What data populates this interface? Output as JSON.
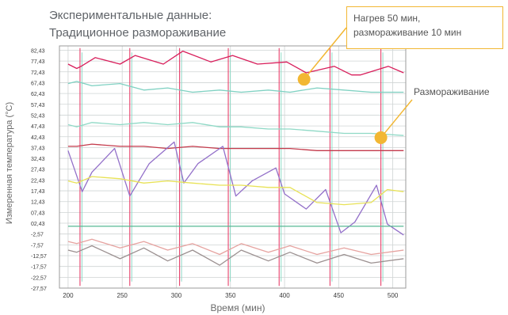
{
  "chart_data": {
    "type": "line",
    "title": "Экспериментальные данные:",
    "subtitle": "Традиционное размораживание",
    "xlabel": "Время (мин)",
    "ylabel": "Измеренная температура (°C)",
    "xlim": [
      192,
      512
    ],
    "ylim": [
      -27.57,
      84.43
    ],
    "x_ticks": [
      "200",
      "250",
      "300",
      "350",
      "400",
      "450",
      "500"
    ],
    "y_ticks": [
      "82,43",
      "77,43",
      "72,43",
      "67,43",
      "62,43",
      "57,43",
      "52,43",
      "47,43",
      "42,43",
      "37,43",
      "32,43",
      "27,43",
      "22,43",
      "17,43",
      "12,43",
      "07,43",
      "02,43",
      "-2,57",
      "-7,57",
      "-12,57",
      "-17,57",
      "-22,57",
      "-27,57"
    ],
    "grid": true,
    "defrost_times": [
      211,
      257,
      303,
      348,
      395,
      442,
      489
    ],
    "series": [
      {
        "color": "#d81e5b",
        "values": [
          [
            200,
            76
          ],
          [
            208,
            74
          ],
          [
            212,
            75
          ],
          [
            225,
            79
          ],
          [
            248,
            76
          ],
          [
            262,
            80
          ],
          [
            288,
            76
          ],
          [
            306,
            82
          ],
          [
            332,
            77
          ],
          [
            352,
            80
          ],
          [
            375,
            76
          ],
          [
            402,
            77
          ],
          [
            420,
            72
          ],
          [
            446,
            75
          ],
          [
            462,
            71
          ],
          [
            470,
            71
          ],
          [
            496,
            75
          ],
          [
            510,
            72
          ]
        ]
      },
      {
        "color": "#7fd1c2",
        "values": [
          [
            200,
            67
          ],
          [
            208,
            68
          ],
          [
            222,
            66
          ],
          [
            248,
            67
          ],
          [
            270,
            64
          ],
          [
            292,
            65
          ],
          [
            315,
            63
          ],
          [
            340,
            64
          ],
          [
            360,
            63
          ],
          [
            385,
            64
          ],
          [
            405,
            63
          ],
          [
            430,
            65
          ],
          [
            455,
            64
          ],
          [
            480,
            63
          ],
          [
            510,
            63
          ]
        ]
      },
      {
        "color": "#8fd9c6",
        "values": [
          [
            200,
            48
          ],
          [
            208,
            47
          ],
          [
            222,
            49
          ],
          [
            248,
            48
          ],
          [
            270,
            49
          ],
          [
            292,
            48
          ],
          [
            315,
            49
          ],
          [
            340,
            47
          ],
          [
            360,
            47
          ],
          [
            385,
            46
          ],
          [
            405,
            46
          ],
          [
            430,
            45
          ],
          [
            455,
            44
          ],
          [
            480,
            44
          ],
          [
            510,
            43
          ]
        ]
      },
      {
        "color": "#c43a4b",
        "values": [
          [
            200,
            38
          ],
          [
            208,
            38
          ],
          [
            222,
            39
          ],
          [
            248,
            38
          ],
          [
            270,
            38
          ],
          [
            292,
            37
          ],
          [
            315,
            38
          ],
          [
            340,
            37
          ],
          [
            360,
            37
          ],
          [
            385,
            37
          ],
          [
            405,
            37
          ],
          [
            430,
            36
          ],
          [
            455,
            36
          ],
          [
            480,
            36
          ],
          [
            510,
            36
          ]
        ]
      },
      {
        "color": "#9370c9",
        "values": [
          [
            200,
            36
          ],
          [
            213,
            17
          ],
          [
            222,
            26
          ],
          [
            243,
            37
          ],
          [
            257,
            15
          ],
          [
            275,
            30
          ],
          [
            298,
            40
          ],
          [
            307,
            21
          ],
          [
            320,
            30
          ],
          [
            343,
            38
          ],
          [
            355,
            15
          ],
          [
            370,
            22
          ],
          [
            392,
            28
          ],
          [
            400,
            16
          ],
          [
            420,
            9
          ],
          [
            438,
            18
          ],
          [
            452,
            -2
          ],
          [
            465,
            3
          ],
          [
            485,
            20
          ],
          [
            495,
            2
          ],
          [
            510,
            -3
          ]
        ]
      },
      {
        "color": "#e8e256",
        "values": [
          [
            200,
            22
          ],
          [
            208,
            21
          ],
          [
            222,
            24
          ],
          [
            248,
            23
          ],
          [
            270,
            21
          ],
          [
            292,
            22
          ],
          [
            315,
            21
          ],
          [
            340,
            20
          ],
          [
            360,
            20
          ],
          [
            385,
            19
          ],
          [
            405,
            19
          ],
          [
            430,
            12
          ],
          [
            455,
            11
          ],
          [
            480,
            12
          ],
          [
            495,
            18
          ],
          [
            510,
            17
          ]
        ]
      },
      {
        "color": "#57b893",
        "values": [
          [
            200,
            1
          ],
          [
            208,
            1
          ],
          [
            222,
            1
          ],
          [
            248,
            1
          ],
          [
            270,
            1
          ],
          [
            292,
            1
          ],
          [
            315,
            1
          ],
          [
            340,
            1
          ],
          [
            360,
            1
          ],
          [
            385,
            1
          ],
          [
            405,
            1
          ],
          [
            430,
            1
          ],
          [
            455,
            1
          ],
          [
            480,
            1
          ],
          [
            510,
            1
          ]
        ]
      },
      {
        "color": "#e6a3a0",
        "values": [
          [
            200,
            -6
          ],
          [
            208,
            -7
          ],
          [
            222,
            -5
          ],
          [
            248,
            -9
          ],
          [
            270,
            -6
          ],
          [
            292,
            -10
          ],
          [
            315,
            -7
          ],
          [
            340,
            -12
          ],
          [
            360,
            -7
          ],
          [
            385,
            -11
          ],
          [
            405,
            -8
          ],
          [
            430,
            -12
          ],
          [
            455,
            -9
          ],
          [
            480,
            -12
          ],
          [
            510,
            -10
          ]
        ]
      },
      {
        "color": "#9b9090",
        "values": [
          [
            200,
            -10
          ],
          [
            208,
            -11
          ],
          [
            222,
            -8
          ],
          [
            248,
            -14
          ],
          [
            270,
            -9
          ],
          [
            292,
            -15
          ],
          [
            315,
            -10
          ],
          [
            340,
            -17
          ],
          [
            360,
            -10
          ],
          [
            385,
            -15
          ],
          [
            405,
            -11
          ],
          [
            430,
            -16
          ],
          [
            455,
            -12
          ],
          [
            480,
            -16
          ],
          [
            510,
            -14
          ]
        ]
      }
    ],
    "annotations": [
      {
        "lines": [
          "Нагрев 50 мин,",
          "размораживание 10 мин"
        ],
        "marker_color": "#f2b733",
        "target": [
          418,
          69
        ]
      },
      {
        "text": "Размораживание",
        "marker_color": "#f2b733",
        "target": [
          489,
          42
        ]
      }
    ]
  }
}
